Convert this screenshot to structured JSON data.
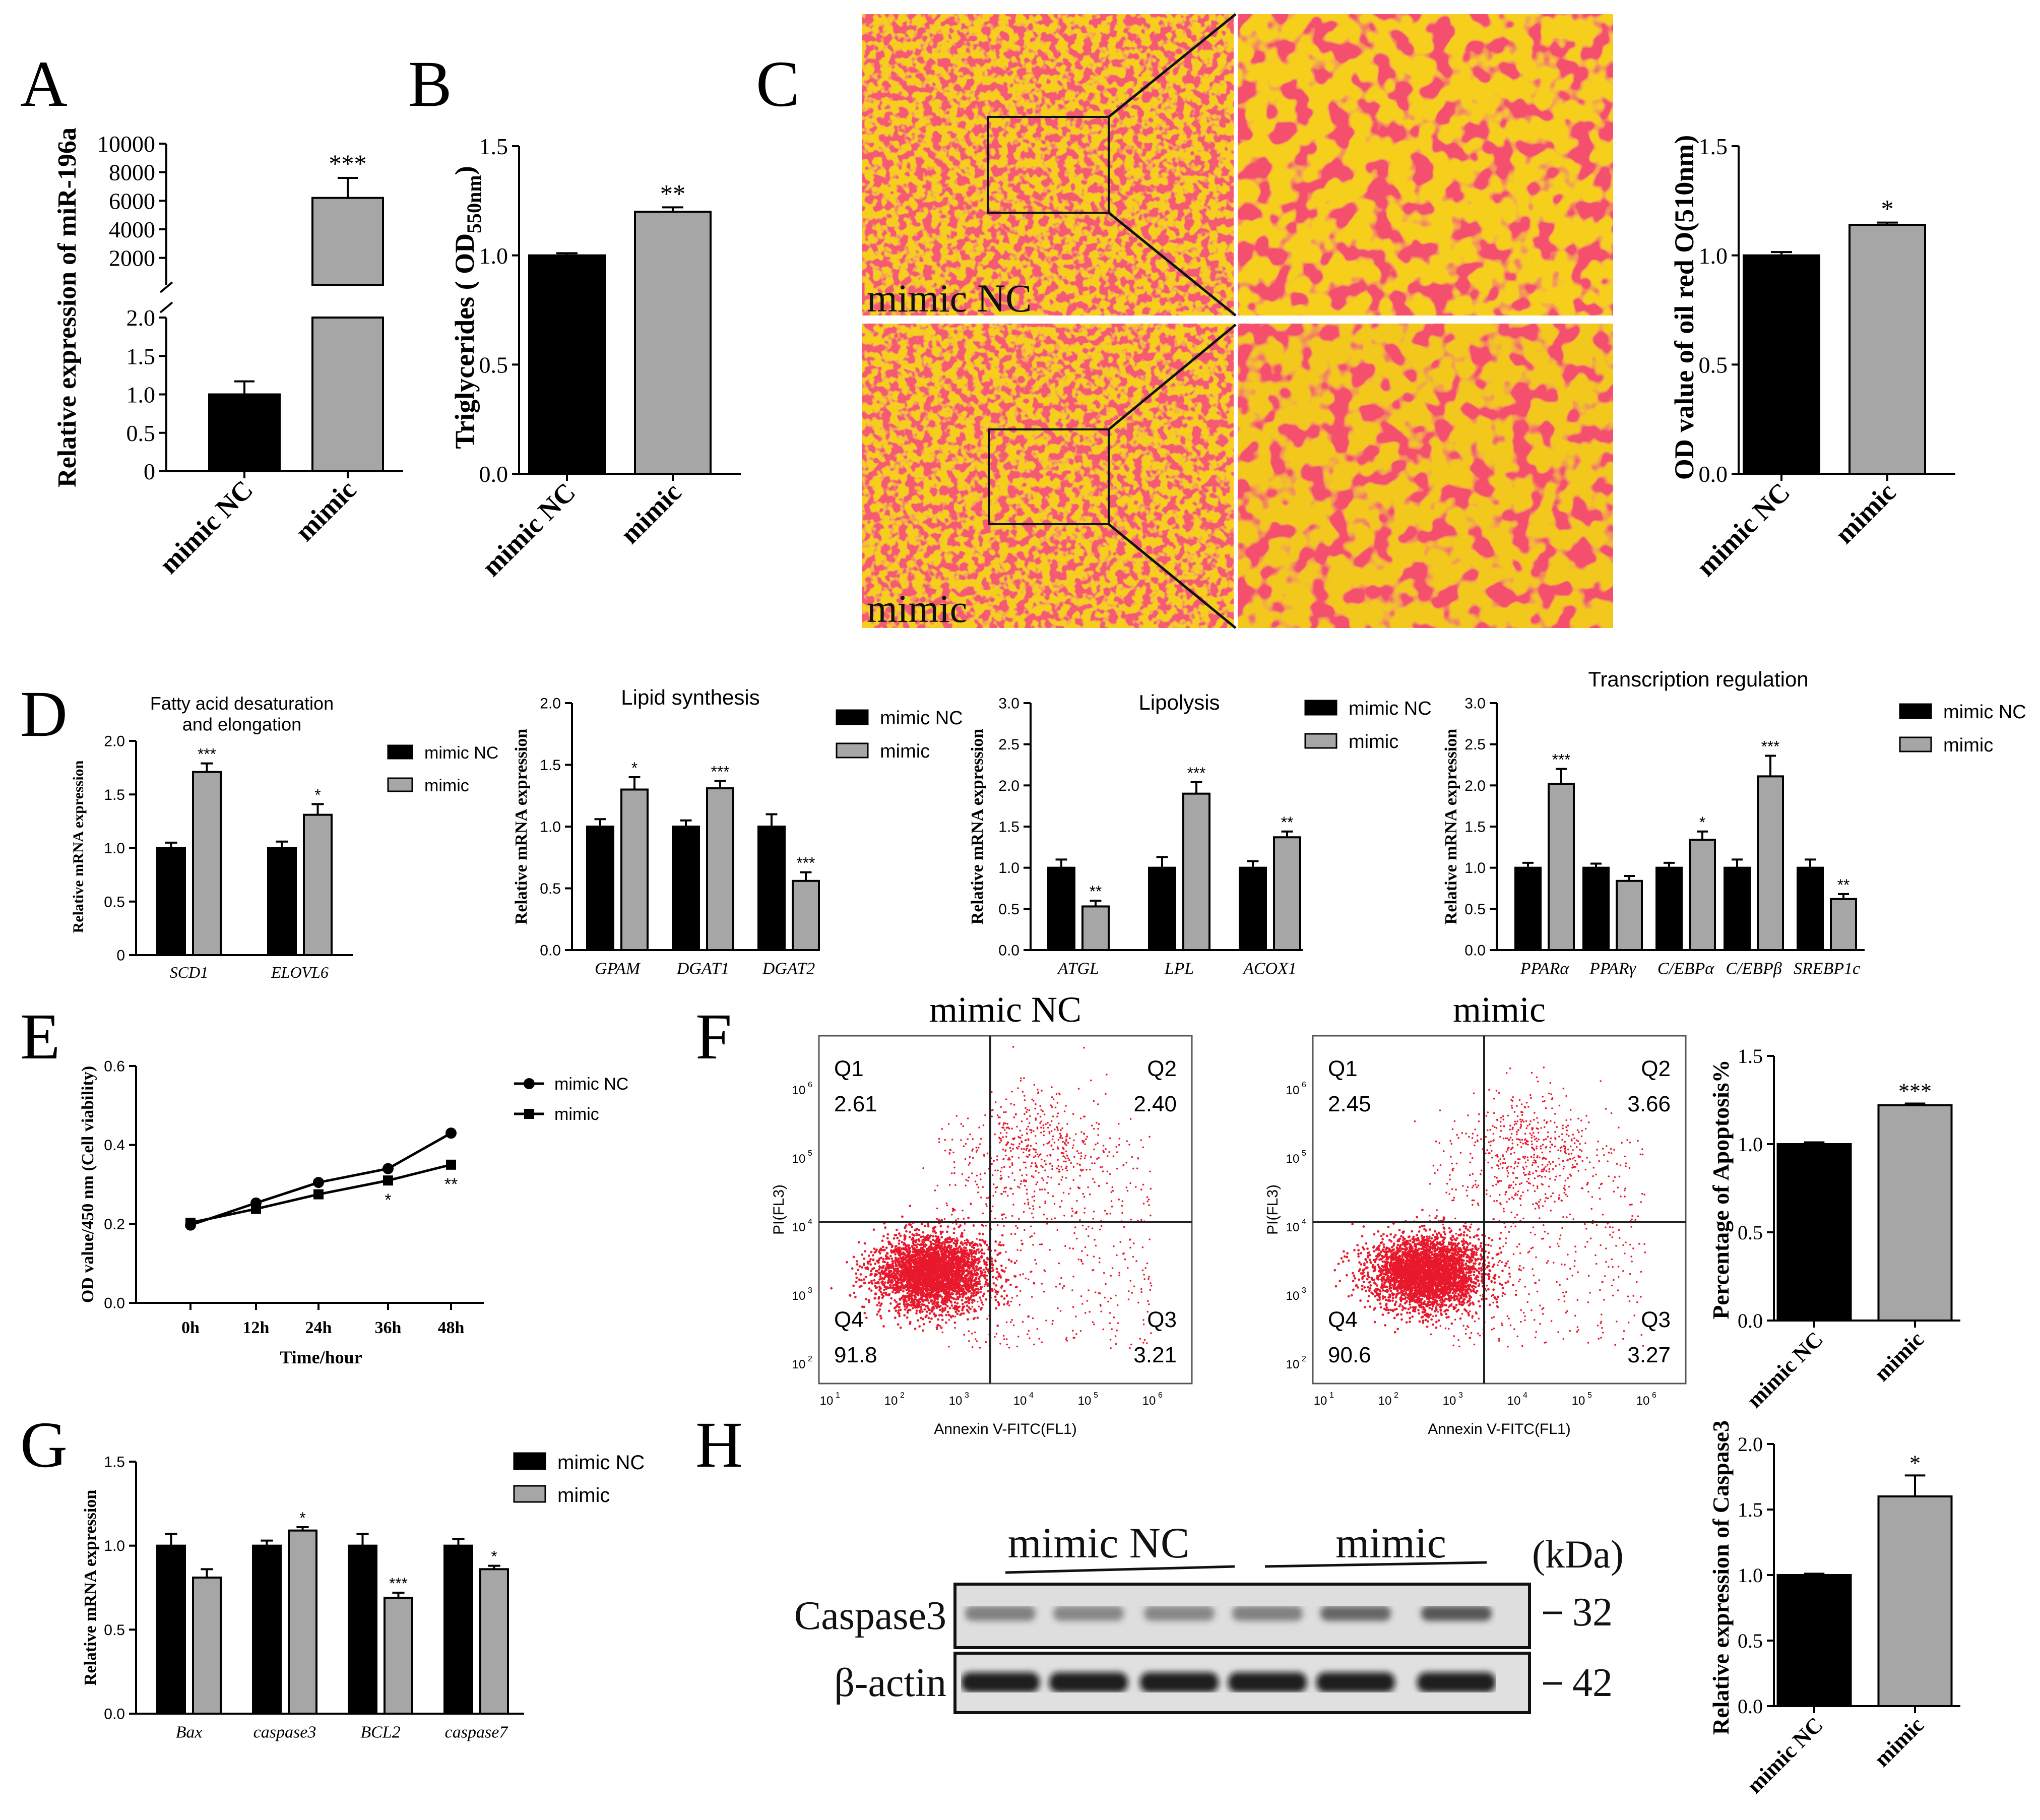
{
  "panel_letters": [
    "A",
    "B",
    "C",
    "D",
    "E",
    "F",
    "G",
    "H"
  ],
  "legend": {
    "nc": "mimic NC",
    "mimic": "mimic"
  },
  "colors": {
    "nc": "#000000",
    "mimic": "#a6a6a6",
    "red": "#e8192c",
    "oil_bg": "#f5cf1c"
  },
  "micro_labels": {
    "top": "mimic NC",
    "bottom": "mimic"
  },
  "flow": {
    "xlabel": "Annexin V-FITC(FL1)",
    "ylabel": "PI(FL3)",
    "ticks": [
      "10",
      "10",
      "10",
      "10",
      "10",
      "10"
    ],
    "exps": [
      "1",
      "2",
      "3",
      "4",
      "5",
      "6"
    ],
    "plots": [
      {
        "title": "mimic NC",
        "q1": "Q1",
        "q1v": "2.61",
        "q2": "Q2",
        "q2v": "2.40",
        "q3": "Q3",
        "q3v": "3.21",
        "q4": "Q4",
        "q4v": "91.8"
      },
      {
        "title": "mimic",
        "q1": "Q1",
        "q1v": "2.45",
        "q2": "Q2",
        "q2v": "3.66",
        "q3": "Q3",
        "q3v": "3.27",
        "q4": "Q4",
        "q4v": "90.6"
      }
    ]
  },
  "western": {
    "group1": "mimic NC",
    "group2": "mimic",
    "unit": "(kDa)",
    "rows": [
      {
        "label": "Caspase3",
        "kda": "32"
      },
      {
        "label": "β-actin",
        "kda": "42"
      }
    ]
  },
  "chart_data": [
    {
      "id": "A",
      "type": "bar",
      "ylabel": "Relative expression of miR-196a",
      "categories": [
        "mimic NC",
        "mimic"
      ],
      "values": [
        1.0,
        6200
      ],
      "errors": [
        0.17,
        1400
      ],
      "axis_break": {
        "lower": [
          0,
          2.0
        ],
        "upper": [
          0,
          10000
        ]
      },
      "lower_ticks": [
        "0",
        "0.5",
        "1.0",
        "1.5",
        "2.0"
      ],
      "upper_ticks": [
        "2000",
        "4000",
        "6000",
        "8000",
        "10000"
      ],
      "sig": [
        "",
        "***"
      ]
    },
    {
      "id": "B",
      "type": "bar",
      "ylabel": "Triglycerides ( OD550nm)",
      "ylabel_main": "Triglycerides ( OD",
      "ylabel_sub": "550nm",
      "ylabel_end": ")",
      "categories": [
        "mimic NC",
        "mimic"
      ],
      "values": [
        1.0,
        1.2
      ],
      "errors": [
        0.01,
        0.02
      ],
      "ylim": [
        0,
        1.5
      ],
      "ticks": [
        "0.0",
        "0.5",
        "1.0",
        "1.5"
      ],
      "sig": [
        "",
        "**"
      ]
    },
    {
      "id": "C",
      "type": "bar",
      "ylabel": "OD value of oil red O(510nm)",
      "categories": [
        "mimic NC",
        "mimic"
      ],
      "values": [
        1.0,
        1.14
      ],
      "errors": [
        0.015,
        0.01
      ],
      "ylim": [
        0,
        1.5
      ],
      "ticks": [
        "0.0",
        "0.5",
        "1.0",
        "1.5"
      ],
      "sig": [
        "",
        "*"
      ]
    },
    {
      "id": "D1",
      "type": "bar",
      "title": "Fatty acid desaturation\nand elongation",
      "title_lines": [
        "Fatty acid desaturation",
        "and elongation"
      ],
      "ylabel": "Relative mRNA expression",
      "categories": [
        "SCD1",
        "ELOVL6"
      ],
      "series": [
        {
          "name": "mimic NC",
          "values": [
            1.0,
            1.0
          ],
          "errors": [
            0.05,
            0.06
          ]
        },
        {
          "name": "mimic",
          "values": [
            1.71,
            1.31
          ],
          "errors": [
            0.08,
            0.1
          ]
        }
      ],
      "ylim": [
        0,
        2.0
      ],
      "ticks": [
        "0",
        "0.5",
        "1.0",
        "1.5",
        "2.0"
      ],
      "sig": [
        "***",
        "*"
      ]
    },
    {
      "id": "D2",
      "type": "bar",
      "title": "Lipid synthesis",
      "ylabel": "Relative mRNA expression",
      "categories": [
        "GPAM",
        "DGAT1",
        "DGAT2"
      ],
      "series": [
        {
          "name": "mimic NC",
          "values": [
            1.0,
            1.0,
            1.0
          ],
          "errors": [
            0.06,
            0.05,
            0.1
          ]
        },
        {
          "name": "mimic",
          "values": [
            1.3,
            1.31,
            0.56
          ],
          "errors": [
            0.1,
            0.06,
            0.07
          ]
        }
      ],
      "ylim": [
        0,
        2.0
      ],
      "ticks": [
        "0.0",
        "0.5",
        "1.0",
        "1.5",
        "2.0"
      ],
      "sig": [
        "*",
        "***",
        "***"
      ]
    },
    {
      "id": "D3",
      "type": "bar",
      "title": "Lipolysis",
      "ylabel": "Relative mRNA expression",
      "categories": [
        "ATGL",
        "LPL",
        "ACOX1"
      ],
      "series": [
        {
          "name": "mimic NC",
          "values": [
            1.0,
            1.0,
            1.0
          ],
          "errors": [
            0.1,
            0.13,
            0.08
          ]
        },
        {
          "name": "mimic",
          "values": [
            0.53,
            1.9,
            1.37
          ],
          "errors": [
            0.07,
            0.14,
            0.07
          ]
        }
      ],
      "ylim": [
        0,
        3.0
      ],
      "ticks": [
        "0.0",
        "0.5",
        "1.0",
        "1.5",
        "2.0",
        "2.5",
        "3.0"
      ],
      "sig": [
        "**",
        "***",
        "**"
      ]
    },
    {
      "id": "D4",
      "type": "bar",
      "title": "Transcription regulation",
      "ylabel": "Relative mRNA expression",
      "categories": [
        "PPARα",
        "PPARγ",
        "C/EBPα",
        "C/EBPβ",
        "SREBP1c"
      ],
      "series": [
        {
          "name": "mimic NC",
          "values": [
            1.0,
            1.0,
            1.0,
            1.0,
            1.0
          ],
          "errors": [
            0.06,
            0.05,
            0.06,
            0.1,
            0.1
          ]
        },
        {
          "name": "mimic",
          "values": [
            2.02,
            0.84,
            1.34,
            2.11,
            0.62
          ],
          "errors": [
            0.18,
            0.06,
            0.1,
            0.25,
            0.06
          ]
        }
      ],
      "ylim": [
        0,
        3.0
      ],
      "ticks": [
        "0.0",
        "0.5",
        "1.0",
        "1.5",
        "2.0",
        "2.5",
        "3.0"
      ],
      "sig": [
        "***",
        "",
        "*",
        "***",
        "**"
      ]
    },
    {
      "id": "E",
      "type": "line",
      "xlabel": "Time/hour",
      "ylabel": "OD value/450 nm (Cell viability)",
      "x": [
        "0h",
        "12h",
        "24h",
        "36h",
        "48h"
      ],
      "series": [
        {
          "name": "mimic NC",
          "values": [
            0.197,
            0.253,
            0.305,
            0.34,
            0.43
          ]
        },
        {
          "name": "mimic",
          "values": [
            0.203,
            0.238,
            0.275,
            0.31,
            0.35
          ]
        }
      ],
      "ylim": [
        0,
        0.6
      ],
      "ticks": [
        "0.0",
        "0.2",
        "0.4",
        "0.6"
      ],
      "sig": [
        "",
        "",
        "",
        "*",
        "**"
      ]
    },
    {
      "id": "F",
      "type": "bar",
      "ylabel": "Percentage of Apoptosis%",
      "categories": [
        "mimic NC",
        "mimic"
      ],
      "values": [
        1.0,
        1.22
      ],
      "errors": [
        0.01,
        0.01
      ],
      "ylim": [
        0,
        1.5
      ],
      "ticks": [
        "0.0",
        "0.5",
        "1.0",
        "1.5"
      ],
      "sig": [
        "",
        "***"
      ]
    },
    {
      "id": "G",
      "type": "bar",
      "ylabel": "Relative mRNA expression",
      "categories": [
        "Bax",
        "caspase3",
        "BCL2",
        "caspase7"
      ],
      "series": [
        {
          "name": "mimic NC",
          "values": [
            1.0,
            1.0,
            1.0,
            1.0
          ],
          "errors": [
            0.07,
            0.03,
            0.07,
            0.04
          ]
        },
        {
          "name": "mimic",
          "values": [
            0.81,
            1.09,
            0.69,
            0.86
          ],
          "errors": [
            0.05,
            0.02,
            0.03,
            0.02
          ]
        }
      ],
      "ylim": [
        0,
        1.5
      ],
      "ticks": [
        "0.0",
        "0.5",
        "1.0",
        "1.5"
      ],
      "sig": [
        "",
        "*",
        "***",
        "*"
      ]
    },
    {
      "id": "H",
      "type": "bar",
      "ylabel": "Relative expression of Caspase3",
      "categories": [
        "mimic NC",
        "mimic"
      ],
      "values": [
        1.0,
        1.6
      ],
      "errors": [
        0.01,
        0.16
      ],
      "ylim": [
        0,
        2.0
      ],
      "ticks": [
        "0.0",
        "0.5",
        "1.0",
        "1.5",
        "2.0"
      ],
      "sig": [
        "",
        "*"
      ]
    }
  ]
}
